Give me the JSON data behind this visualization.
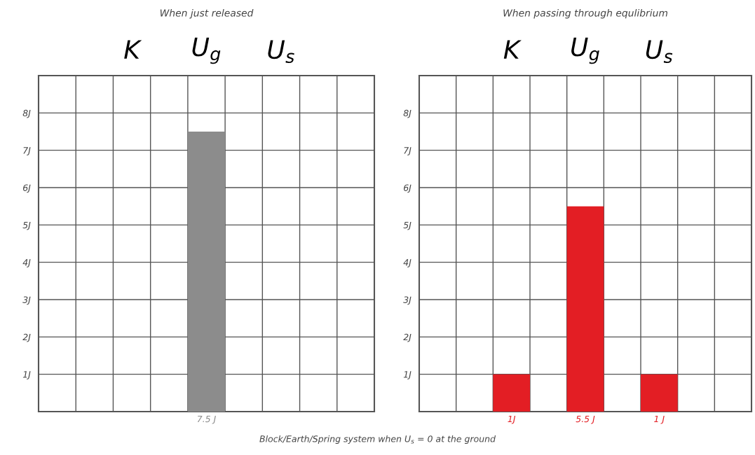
{
  "chart_data": [
    {
      "type": "bar",
      "title": "When just released",
      "categories": [
        null,
        null,
        "K",
        null,
        "U$_{g}$",
        null,
        "U$_{s}$",
        null,
        null
      ],
      "ylim": [
        0,
        9
      ],
      "yticks": [
        {
          "value": 1,
          "label": "1J"
        },
        {
          "value": 2,
          "label": "2J"
        },
        {
          "value": 3,
          "label": "3J"
        },
        {
          "value": 4,
          "label": "4J"
        },
        {
          "value": 5,
          "label": "5J"
        },
        {
          "value": 6,
          "label": "6J"
        },
        {
          "value": 7,
          "label": "7J"
        },
        {
          "value": 8,
          "label": "8J"
        }
      ],
      "grid": true,
      "series": [
        {
          "color": "#8c8c8c",
          "values": [
            null,
            null,
            0,
            null,
            7.5,
            null,
            0,
            null,
            null
          ],
          "value_labels": [
            null,
            null,
            null,
            null,
            "7.5 J",
            null,
            null,
            null,
            null
          ]
        }
      ],
      "annotations": [
        "Block/Earth/Spring system when U$_{s}$ = 0 at the ground"
      ]
    },
    {
      "type": "bar",
      "title": "When passing through equlibrium",
      "categories": [
        null,
        null,
        "K",
        null,
        "U$_{g}$",
        null,
        "U$_{s}$",
        null,
        null
      ],
      "ylim": [
        0,
        9
      ],
      "yticks": [
        {
          "value": 1,
          "label": "1J"
        },
        {
          "value": 2,
          "label": "2J"
        },
        {
          "value": 3,
          "label": "3J"
        },
        {
          "value": 4,
          "label": "4J"
        },
        {
          "value": 5,
          "label": "5J"
        },
        {
          "value": 6,
          "label": "6J"
        },
        {
          "value": 7,
          "label": "7J"
        },
        {
          "value": 8,
          "label": "8J"
        }
      ],
      "grid": true,
      "series": [
        {
          "color": "#e31e24",
          "values": [
            null,
            null,
            1,
            null,
            5.5,
            null,
            1,
            null,
            null
          ],
          "value_labels": [
            null,
            null,
            "1J",
            null,
            "5.5 J",
            null,
            "1 J",
            null,
            null
          ]
        }
      ]
    }
  ]
}
